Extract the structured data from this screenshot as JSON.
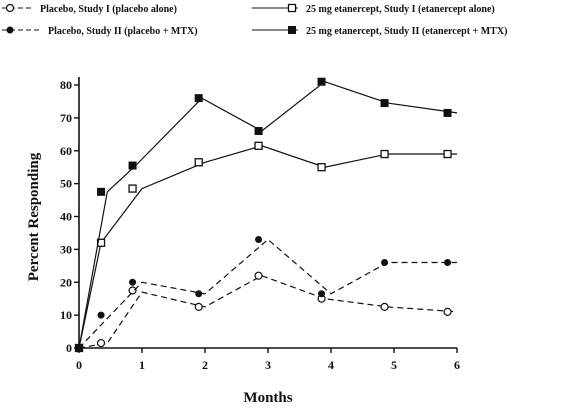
{
  "chart_data": {
    "type": "line",
    "title": "",
    "xlabel": "Months",
    "ylabel": "Percent Responding",
    "xlim": [
      0,
      6
    ],
    "ylim": [
      0,
      80
    ],
    "x_ticks": [
      "0",
      "1",
      "2",
      "3",
      "4",
      "5",
      "6"
    ],
    "y_ticks": [
      "0",
      "10",
      "20",
      "30",
      "40",
      "50",
      "60",
      "70",
      "80"
    ],
    "grid": false,
    "legend_position": "top",
    "series": [
      {
        "name": "Placebo, Study I (placebo alone)",
        "style": "dashed",
        "marker": "open-circle",
        "color": "#111111",
        "points": [
          [
            0,
            0
          ],
          [
            0.35,
            1.5
          ],
          [
            0.85,
            17.5
          ],
          [
            1.9,
            12.5
          ],
          [
            2.85,
            22
          ],
          [
            3.85,
            15
          ],
          [
            4.85,
            12.5
          ],
          [
            5.85,
            11
          ]
        ],
        "line": [
          [
            0,
            0
          ],
          [
            0.45,
            1.5
          ],
          [
            1,
            17
          ],
          [
            2,
            12.5
          ],
          [
            2.9,
            22
          ],
          [
            3.9,
            15
          ],
          [
            4.9,
            12.5
          ],
          [
            6,
            11
          ]
        ]
      },
      {
        "name": "Placebo, Study II (placebo + MTX)",
        "style": "dashed",
        "marker": "filled-circle",
        "color": "#111111",
        "points": [
          [
            0,
            0
          ],
          [
            0.35,
            10
          ],
          [
            0.85,
            20
          ],
          [
            1.9,
            16.5
          ],
          [
            2.85,
            33
          ],
          [
            3.85,
            16.5
          ],
          [
            4.85,
            26
          ],
          [
            5.85,
            26
          ]
        ],
        "line": [
          [
            0,
            0
          ],
          [
            0.5,
            10
          ],
          [
            1,
            20
          ],
          [
            2,
            16.5
          ],
          [
            3,
            33
          ],
          [
            4,
            16.5
          ],
          [
            4.9,
            26
          ],
          [
            6,
            26
          ]
        ]
      },
      {
        "name": "25 mg etanercept, Study I (etanercept alone)",
        "style": "solid",
        "marker": "open-square",
        "color": "#111111",
        "points": [
          [
            0,
            0
          ],
          [
            0.35,
            32
          ],
          [
            0.85,
            48.5
          ],
          [
            1.9,
            56.5
          ],
          [
            2.85,
            61.5
          ],
          [
            3.85,
            55
          ],
          [
            4.85,
            59
          ],
          [
            5.85,
            59
          ]
        ],
        "line": [
          [
            0,
            0
          ],
          [
            0.35,
            32
          ],
          [
            1,
            48.5
          ],
          [
            2,
            56.5
          ],
          [
            2.9,
            61.5
          ],
          [
            3.9,
            55
          ],
          [
            4.9,
            59
          ],
          [
            6,
            59
          ]
        ]
      },
      {
        "name": "25 mg etanercept, Study II (etanercept + MTX)",
        "style": "solid",
        "marker": "filled-square",
        "color": "#111111",
        "points": [
          [
            0,
            0
          ],
          [
            0.35,
            47.5
          ],
          [
            0.85,
            55.5
          ],
          [
            1.9,
            76
          ],
          [
            2.85,
            66
          ],
          [
            3.85,
            81
          ],
          [
            4.85,
            74.5
          ],
          [
            5.85,
            71.5
          ]
        ],
        "line": [
          [
            0,
            0
          ],
          [
            0.45,
            47.5
          ],
          [
            0.9,
            55.5
          ],
          [
            1.95,
            76
          ],
          [
            2.9,
            66
          ],
          [
            3.9,
            81
          ],
          [
            4.9,
            74.5
          ],
          [
            6,
            71.5
          ]
        ]
      }
    ]
  }
}
